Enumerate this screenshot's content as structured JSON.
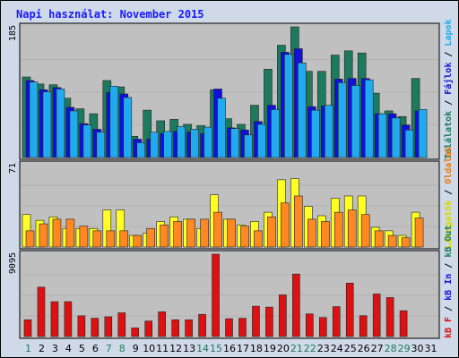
{
  "title": "Napi használat: November 2015",
  "chart_data": [
    {
      "type": "bar",
      "panel": "top",
      "ymax_label": "185",
      "categories": [
        "1",
        "2",
        "3",
        "4",
        "5",
        "6",
        "7",
        "8",
        "9",
        "10",
        "11",
        "12",
        "13",
        "14",
        "15",
        "16",
        "17",
        "18",
        "19",
        "20",
        "21",
        "22",
        "23",
        "24",
        "25",
        "26",
        "27",
        "28",
        "29",
        "30",
        "31"
      ],
      "series": [
        {
          "name": "Találatok",
          "color": "#1e7a5c",
          "values": [
            114,
            104,
            103,
            84,
            69,
            62,
            109,
            100,
            30,
            67,
            52,
            54,
            47,
            45,
            96,
            55,
            47,
            74,
            125,
            159,
            185,
            122,
            122,
            145,
            151,
            148,
            91,
            66,
            58,
            112,
            0
          ]
        },
        {
          "name": "Fájlok",
          "color": "#1010e0",
          "values": [
            109,
            96,
            99,
            71,
            48,
            40,
            92,
            90,
            26,
            26,
            34,
            37,
            36,
            34,
            97,
            42,
            39,
            51,
            74,
            149,
            154,
            72,
            73,
            111,
            112,
            112,
            62,
            62,
            46,
            66,
            0
          ]
        },
        {
          "name": "Lapok",
          "color": "#22aaee",
          "values": [
            107,
            93,
            97,
            66,
            46,
            36,
            101,
            85,
            21,
            36,
            37,
            44,
            40,
            43,
            84,
            41,
            32,
            47,
            68,
            146,
            134,
            67,
            74,
            106,
            102,
            110,
            62,
            56,
            39,
            68,
            0
          ]
        }
      ],
      "right_labels": [
        {
          "text": "Találatok",
          "color": "#1e7a5c"
        },
        {
          "text": "Fájlok",
          "color": "#1515d0"
        },
        {
          "text": "Lapok",
          "color": "#22aaee"
        }
      ]
    },
    {
      "type": "bar",
      "panel": "middle",
      "ymax_label": "71",
      "series": [
        {
          "name": "Látogatók",
          "color": "#ffff22",
          "values": [
            28,
            23,
            26,
            16,
            16,
            16,
            32,
            32,
            10,
            12,
            22,
            26,
            24,
            16,
            45,
            24,
            19,
            22,
            30,
            58,
            59,
            35,
            27,
            42,
            44,
            44,
            17,
            14,
            10,
            30,
            0
          ]
        },
        {
          "name": "Oldalak",
          "color": "#ff8822",
          "values": [
            14,
            20,
            24,
            24,
            18,
            14,
            14,
            14,
            10,
            16,
            19,
            22,
            24,
            24,
            30,
            24,
            18,
            14,
            26,
            38,
            44,
            24,
            22,
            30,
            32,
            28,
            14,
            10,
            8,
            25,
            0
          ]
        }
      ],
      "right_labels": [
        {
          "text": "Látogatók",
          "color": "#d8d800"
        },
        {
          "text": "Oldalak",
          "color": "#ee7711"
        }
      ]
    },
    {
      "type": "bar",
      "panel": "bottom",
      "ymax_label": "9095",
      "series": [
        {
          "name": "kB F",
          "color": "#dd1111",
          "values": [
            1850,
            5450,
            3850,
            3850,
            2290,
            2020,
            2180,
            2620,
            950,
            1710,
            2730,
            1850,
            1850,
            2450,
            9095,
            1970,
            2020,
            3350,
            3250,
            4600,
            6900,
            2500,
            2100,
            3300,
            5900,
            2300,
            4700,
            4300,
            2850,
            0,
            0
          ]
        }
      ],
      "right_labels": [
        {
          "text": "kB F",
          "color": "#dd1111"
        },
        {
          "text": "kB In",
          "color": "#1010e0"
        },
        {
          "text": "kB Out",
          "color": "#1e7a5c"
        }
      ]
    }
  ],
  "weekend_days": [
    "1",
    "7",
    "8",
    "14",
    "15",
    "21",
    "22",
    "28",
    "29"
  ],
  "colors": {
    "weekday": "#000000",
    "weekend": "#1e7a5c",
    "panel_bg": "#c0c0c0",
    "frame_bg": "#cfd9e8"
  }
}
